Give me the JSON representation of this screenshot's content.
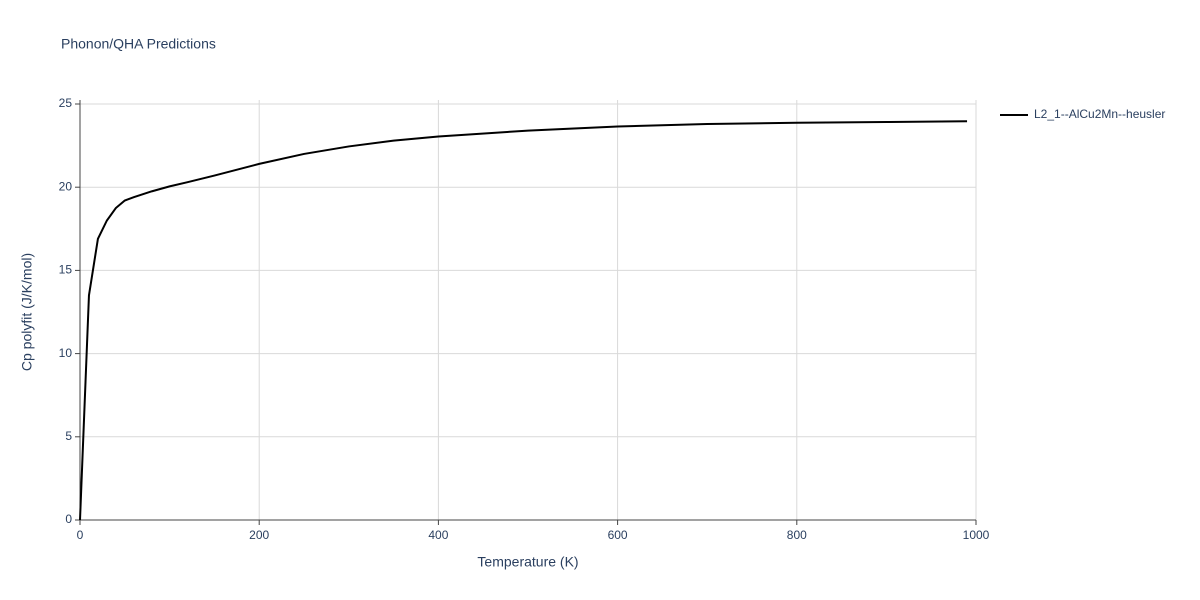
{
  "chart_data": {
    "type": "line",
    "title": "Phonon/QHA Predictions",
    "x_label": "Temperature (K)",
    "y_label": "Cp polyfit (J/K/mol)",
    "x": [
      0,
      10,
      20,
      30,
      40,
      50,
      60,
      80,
      100,
      120,
      150,
      200,
      250,
      300,
      350,
      400,
      500,
      600,
      700,
      800,
      900,
      990
    ],
    "series": [
      {
        "name": "L2_1--AlCu2Mn--heusler",
        "color": "#000000",
        "values": [
          0,
          13.5,
          16.9,
          18.0,
          18.75,
          19.2,
          19.4,
          19.75,
          20.05,
          20.3,
          20.7,
          21.4,
          22.0,
          22.45,
          22.8,
          23.05,
          23.4,
          23.65,
          23.8,
          23.87,
          23.92,
          23.96
        ]
      }
    ],
    "xlim": [
      0,
      1000
    ],
    "xticks": [
      0,
      200,
      400,
      600,
      800,
      1000
    ],
    "ylim": [
      0,
      25
    ],
    "yticks": [
      0,
      5,
      10,
      15,
      20,
      25
    ],
    "grid": true,
    "legend": "right"
  }
}
